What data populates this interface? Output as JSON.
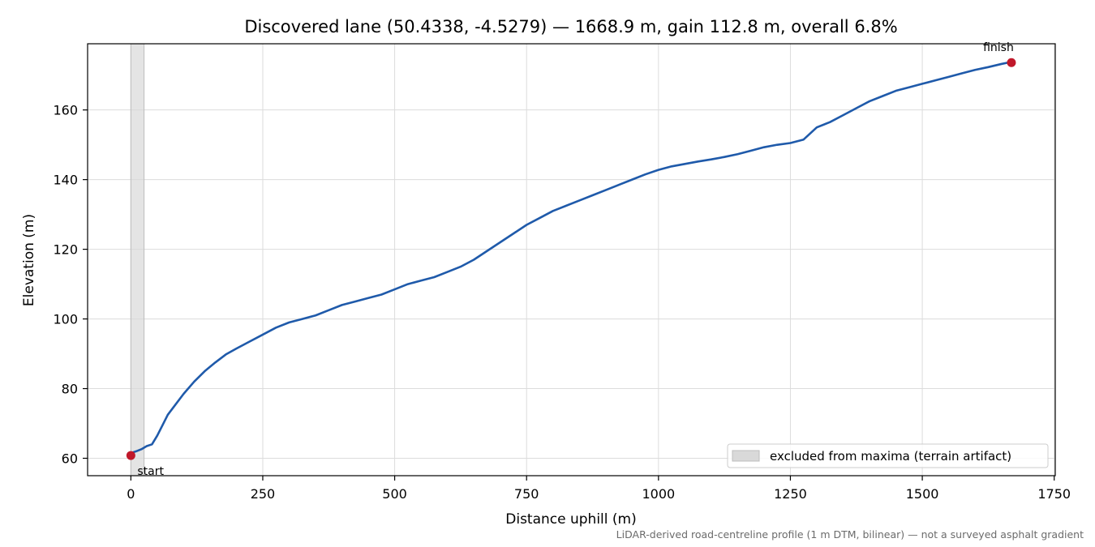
{
  "chart_data": {
    "type": "line",
    "title": "Discovered lane (50.4338, -4.5279) — 1668.9 m, gain 112.8 m, overall 6.8%",
    "xlabel": "Distance uphill (m)",
    "ylabel": "Elevation (m)",
    "xlim": [
      -82,
      1752
    ],
    "ylim": [
      55,
      179
    ],
    "xticks": [
      0,
      250,
      500,
      750,
      1000,
      1250,
      1500,
      1750
    ],
    "yticks": [
      60,
      80,
      100,
      120,
      140,
      160
    ],
    "grid": true,
    "legend_position": "bottom-right",
    "series": [
      {
        "color": "#1f5aaa",
        "x": [
          0,
          10,
          20,
          30,
          40,
          50,
          60,
          70,
          80,
          100,
          120,
          140,
          160,
          180,
          200,
          225,
          250,
          275,
          300,
          325,
          350,
          375,
          400,
          425,
          450,
          475,
          500,
          525,
          550,
          575,
          600,
          625,
          650,
          675,
          700,
          725,
          750,
          775,
          800,
          825,
          850,
          875,
          900,
          925,
          950,
          975,
          1000,
          1025,
          1050,
          1075,
          1100,
          1125,
          1150,
          1175,
          1200,
          1225,
          1250,
          1275,
          1300,
          1325,
          1350,
          1375,
          1400,
          1425,
          1450,
          1475,
          1500,
          1525,
          1550,
          1575,
          1600,
          1625,
          1650,
          1668.9
        ],
        "y": [
          61.5,
          62.0,
          62.6,
          63.5,
          64.0,
          66.5,
          69.5,
          72.5,
          74.5,
          78.5,
          82.0,
          85.0,
          87.5,
          89.8,
          91.5,
          93.5,
          95.5,
          97.5,
          99.0,
          100.0,
          101.0,
          102.5,
          104.0,
          105.0,
          106.0,
          107.0,
          108.5,
          110.0,
          111.0,
          112.0,
          113.5,
          115.0,
          117.0,
          119.5,
          122.0,
          124.5,
          127.0,
          129.0,
          131.0,
          132.5,
          134.0,
          135.5,
          137.0,
          138.5,
          140.0,
          141.5,
          142.8,
          143.8,
          144.5,
          145.2,
          145.8,
          146.5,
          147.3,
          148.3,
          149.3,
          150.0,
          150.5,
          151.5,
          155.0,
          156.5,
          158.5,
          160.5,
          162.5,
          164.0,
          165.5,
          166.5,
          167.5,
          168.5,
          169.5,
          170.5,
          171.5,
          172.3,
          173.2,
          173.8
        ]
      }
    ],
    "points": [
      {
        "label": "start",
        "x": 0,
        "y": 60.8,
        "color": "#c0182a"
      },
      {
        "label": "finish",
        "x": 1668.9,
        "y": 173.6,
        "color": "#c0182a"
      }
    ],
    "excluded_band": {
      "x0": 0,
      "x1": 25,
      "color": "#d9d9d9"
    },
    "legend": [
      {
        "label": "excluded from maxima (terrain artifact)",
        "swatch": "#d9d9d9"
      }
    ],
    "footnote": "LiDAR-derived road-centreline profile (1 m DTM, bilinear) — not a surveyed asphalt gradient"
  }
}
